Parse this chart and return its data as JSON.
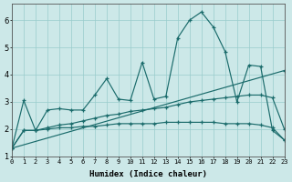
{
  "background_color": "#cce8e8",
  "grid_color": "#99cccc",
  "line_color": "#1a6b6b",
  "xlabel": "Humidex (Indice chaleur)",
  "xlim": [
    0,
    23
  ],
  "ylim": [
    1,
    6.6
  ],
  "yticks": [
    1,
    2,
    3,
    4,
    5,
    6
  ],
  "xticks": [
    0,
    1,
    2,
    3,
    4,
    5,
    6,
    7,
    8,
    9,
    10,
    11,
    12,
    13,
    14,
    15,
    16,
    17,
    18,
    19,
    20,
    21,
    22,
    23
  ],
  "curve_main_x": [
    0,
    1,
    2,
    3,
    4,
    5,
    6,
    7,
    8,
    9,
    10,
    11,
    12,
    13,
    14,
    15,
    16,
    17,
    18,
    19,
    20,
    21,
    22,
    23
  ],
  "curve_main_y": [
    1.3,
    3.05,
    1.95,
    2.7,
    2.75,
    2.7,
    2.7,
    3.25,
    3.85,
    3.1,
    3.05,
    4.45,
    3.1,
    3.2,
    5.35,
    6.0,
    6.3,
    5.75,
    4.85,
    3.0,
    4.35,
    4.3,
    1.95,
    1.6
  ],
  "curve_trend_x": [
    0,
    23
  ],
  "curve_trend_y": [
    1.3,
    4.15
  ],
  "curve_mid_x": [
    0,
    1,
    2,
    3,
    4,
    5,
    6,
    7,
    8,
    9,
    10,
    11,
    12,
    13,
    14,
    15,
    16,
    17,
    18,
    19,
    20,
    21,
    22,
    23
  ],
  "curve_mid_y": [
    1.3,
    1.95,
    1.95,
    2.05,
    2.15,
    2.2,
    2.3,
    2.4,
    2.5,
    2.55,
    2.65,
    2.7,
    2.75,
    2.8,
    2.9,
    3.0,
    3.05,
    3.1,
    3.15,
    3.2,
    3.25,
    3.25,
    3.15,
    2.0
  ],
  "curve_low_x": [
    0,
    1,
    2,
    3,
    4,
    5,
    6,
    7,
    8,
    9,
    10,
    11,
    12,
    13,
    14,
    15,
    16,
    17,
    18,
    19,
    20,
    21,
    22,
    23
  ],
  "curve_low_y": [
    1.3,
    1.95,
    1.95,
    2.0,
    2.05,
    2.05,
    2.1,
    2.1,
    2.15,
    2.2,
    2.2,
    2.2,
    2.2,
    2.25,
    2.25,
    2.25,
    2.25,
    2.25,
    2.2,
    2.2,
    2.2,
    2.15,
    2.05,
    1.6
  ]
}
